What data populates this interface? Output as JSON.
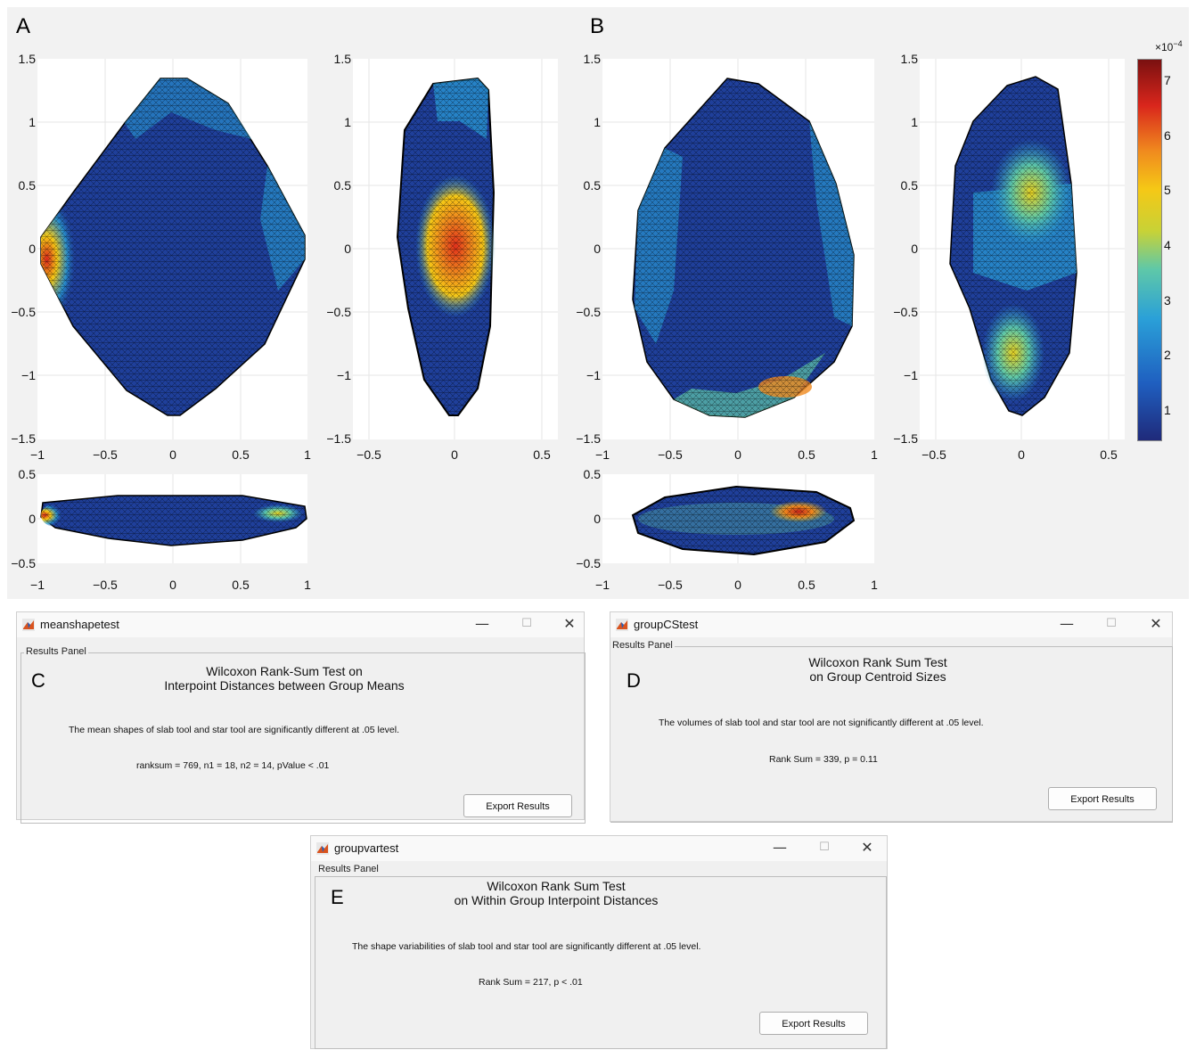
{
  "panels": {
    "a_letter": "A",
    "b_letter": "B"
  },
  "axes": {
    "main_y_ticks": [
      "1.5",
      "1",
      "0.5",
      "0",
      "−0.5",
      "−1",
      "−1.5"
    ],
    "main_x_ticks": [
      "−1",
      "−0.5",
      "0",
      "0.5",
      "1"
    ],
    "side_x_ticks": [
      "−0.5",
      "0",
      "0.5"
    ],
    "bottom_y_ticks": [
      "0.5",
      "0",
      "−0.5"
    ]
  },
  "colorbar": {
    "exponent_base": "×10",
    "exponent_power": "−4",
    "ticks": [
      "7",
      "6",
      "5",
      "4",
      "3",
      "2",
      "1"
    ],
    "colors": [
      "#1f2a7a",
      "#1f5fc0",
      "#2aa0d8",
      "#5fc8a8",
      "#c8d236",
      "#f5c816",
      "#f08a1e",
      "#d9261c",
      "#7a1010"
    ]
  },
  "windows": {
    "c": {
      "title": "meanshapetest",
      "panel_label": "Results Panel",
      "letter": "C",
      "heading_line1": "Wilcoxon Rank-Sum Test on",
      "heading_line2": "Interpoint Distances between Group Means",
      "result_text": "The mean shapes of slab tool and star tool are significantly different at .05 level.",
      "stat_text": "ranksum  = 769, n1 = 18, n2 = 14, pValue < .01",
      "button": "Export Results"
    },
    "d": {
      "title": "groupCStest",
      "panel_label": "Results Panel",
      "letter": "D",
      "heading_line1": "Wilcoxon Rank Sum Test",
      "heading_line2": "on Group Centroid Sizes",
      "result_text": "The volumes of slab tool and star tool are not significantly different at .05 level.",
      "stat_text": "Rank Sum = 339, p = 0.11",
      "button": "Export Results"
    },
    "e": {
      "title": "groupvartest",
      "panel_label": "Results Panel",
      "letter": "E",
      "heading_line1": "Wilcoxon Rank Sum Test",
      "heading_line2": "on Within Group Interpoint Distances",
      "result_text": "The shape variabilities of slab tool and star tool are significantly different at .05 level.",
      "stat_text": "Rank Sum = 217, p < .01",
      "button": "Export Results"
    },
    "controls": {
      "minimize": "—",
      "maximize": "☐",
      "close": "✕"
    }
  },
  "icons": {
    "app": "matlab-icon"
  }
}
